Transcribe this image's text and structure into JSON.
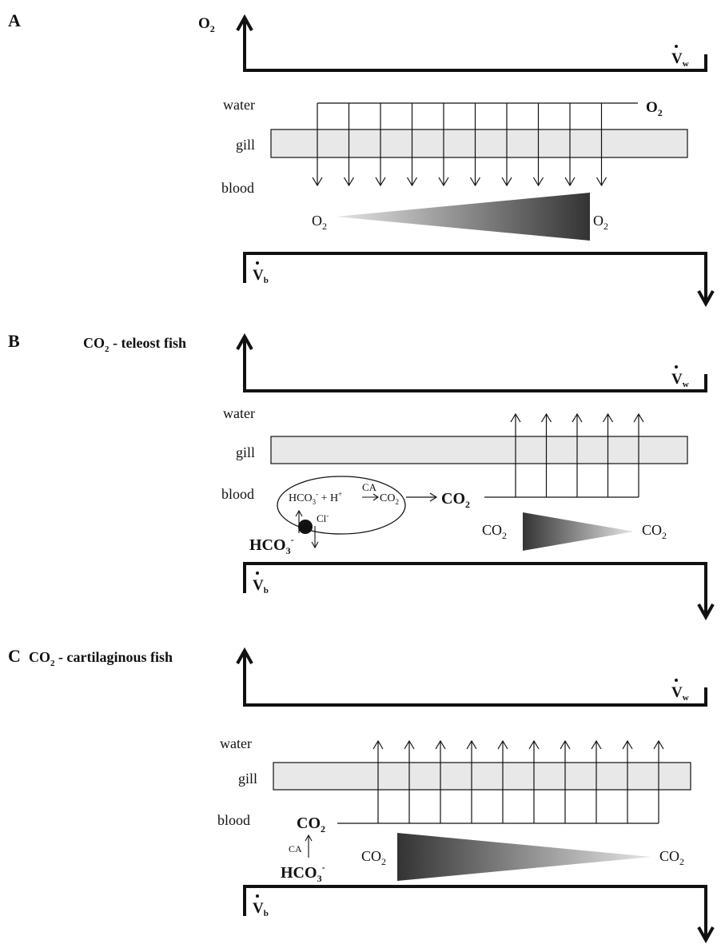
{
  "panels": [
    {
      "letter": "A",
      "title": "O",
      "title_sub": "2",
      "title_rest": "",
      "vw_label": "V",
      "vw_sub": "w",
      "vb_label": "V",
      "vb_sub": "b",
      "water_label": "water",
      "gill_label": "gill",
      "blood_label": "blood",
      "water_o2": "O",
      "water_o2_sub": "2",
      "grad_left": "O",
      "grad_left_sub": "2",
      "grad_right": "O",
      "grad_right_sub": "2"
    },
    {
      "letter": "B",
      "title": "CO",
      "title_sub": "2",
      "title_rest": " - teleost fish",
      "vw_label": "V",
      "vw_sub": "w",
      "vb_label": "V",
      "vb_sub": "b",
      "water_label": "water",
      "gill_label": "gill",
      "blood_label": "blood",
      "cell_hco3": "HCO",
      "cell_hco3_sub": "3",
      "cell_hco3_sup": "-",
      "cell_plus_h": " + H",
      "cell_h_sup": "+",
      "cell_ca": "CA",
      "cell_co2": "CO",
      "cell_co2_sub": "2",
      "cl_label": "Cl",
      "cl_sup": "-",
      "hco3_out": "HCO",
      "hco3_out_sub": "3",
      "hco3_out_sup": "-",
      "co2_bold": "CO",
      "co2_bold_sub": "2",
      "grad_left": "CO",
      "grad_left_sub": "2",
      "grad_right": "CO",
      "grad_right_sub": "2"
    },
    {
      "letter": "C",
      "title": "CO",
      "title_sub": "2",
      "title_rest": " - cartilaginous fish",
      "vw_label": "V",
      "vw_sub": "w",
      "vb_label": "V",
      "vb_sub": "b",
      "water_label": "water",
      "gill_label": "gill",
      "blood_label": "blood",
      "co2_bold": "CO",
      "co2_bold_sub": "2",
      "ca_label": "CA",
      "hco3_bold": "HCO",
      "hco3_bold_sub": "3",
      "hco3_bold_sup": "-",
      "grad_left": "CO",
      "grad_left_sub": "2",
      "grad_right": "CO",
      "grad_right_sub": "2"
    }
  ],
  "colors": {
    "ink": "#111111",
    "gill_fill": "#e8e8e8",
    "grad_dark": "#333333",
    "grad_light": "#e6e6e6"
  }
}
